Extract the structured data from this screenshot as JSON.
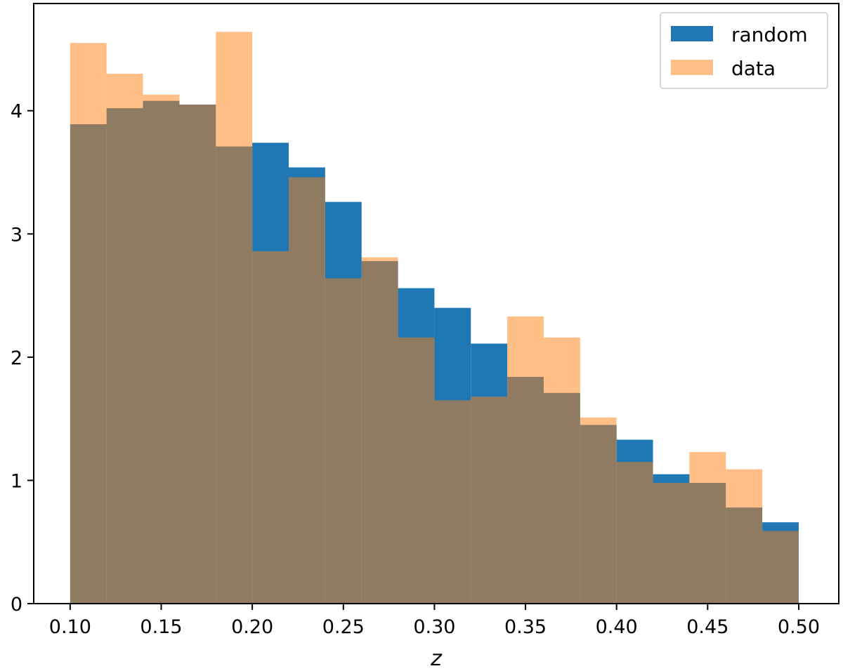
{
  "chart_data": {
    "type": "bar",
    "histogram": true,
    "bin_edges": [
      0.1,
      0.12,
      0.14,
      0.16,
      0.18,
      0.2,
      0.22,
      0.24,
      0.26,
      0.28,
      0.3,
      0.32,
      0.34,
      0.36,
      0.38,
      0.4,
      0.42,
      0.44,
      0.46,
      0.48,
      0.5
    ],
    "series": [
      {
        "name": "random",
        "color": "#1f77b4",
        "opacity": 1.0,
        "values": [
          3.89,
          4.02,
          4.08,
          4.05,
          3.71,
          3.74,
          3.54,
          3.26,
          2.78,
          2.56,
          2.4,
          2.11,
          1.84,
          1.71,
          1.45,
          1.33,
          1.05,
          0.98,
          0.78,
          0.66
        ]
      },
      {
        "name": "data",
        "color": "#ff7f0e",
        "opacity": 0.5,
        "values": [
          4.55,
          4.3,
          4.13,
          4.05,
          4.64,
          2.86,
          3.46,
          2.64,
          2.81,
          2.16,
          1.65,
          1.68,
          2.33,
          2.16,
          1.51,
          1.15,
          0.98,
          1.23,
          1.09,
          0.59
        ]
      }
    ],
    "title": "",
    "xlabel": "z",
    "ylabel": "",
    "xlim": [
      0.08,
      0.522
    ],
    "ylim": [
      0,
      4.87
    ],
    "xticks": [
      0.1,
      0.15,
      0.2,
      0.25,
      0.3,
      0.35,
      0.4,
      0.45,
      0.5
    ],
    "xtick_labels": [
      "0.10",
      "0.15",
      "0.20",
      "0.25",
      "0.30",
      "0.35",
      "0.40",
      "0.45",
      "0.50"
    ],
    "yticks": [
      0,
      1,
      2,
      3,
      4
    ],
    "ytick_labels": [
      "0",
      "1",
      "2",
      "3",
      "4"
    ],
    "grid": false,
    "legend_position": "top-right"
  }
}
